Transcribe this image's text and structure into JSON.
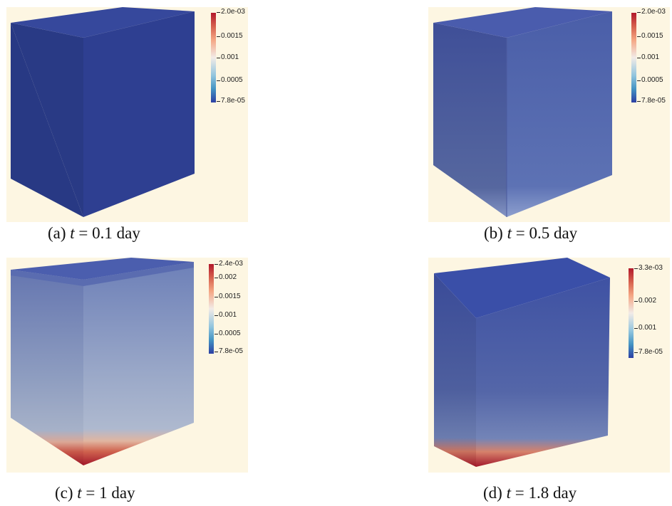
{
  "panels": [
    {
      "caption_label": "(a)",
      "caption_var": "t",
      "caption_eq": "= 0.1 day",
      "colorbar_ticks": [
        "2.0e-03",
        "0.0015",
        "0.001",
        "0.0005",
        "7.8e-05"
      ]
    },
    {
      "caption_label": "(b)",
      "caption_var": "t",
      "caption_eq": "= 0.5 day",
      "colorbar_ticks": [
        "2.0e-03",
        "0.0015",
        "0.001",
        "0.0005",
        "7.8e-05"
      ]
    },
    {
      "caption_label": "(c)",
      "caption_var": "t",
      "caption_eq": "= 1 day",
      "colorbar_ticks": [
        "2.4e-03",
        "0.002",
        "0.0015",
        "0.001",
        "0.0005",
        "7.8e-05"
      ]
    },
    {
      "caption_label": "(d)",
      "caption_var": "t",
      "caption_eq": "= 1.8 day",
      "colorbar_ticks": [
        "3.3e-03",
        "0.002",
        "0.001",
        "7.8e-05"
      ]
    }
  ],
  "colors": {
    "background": "#fdf6e2",
    "colormap_high": "#b2182b",
    "colormap_mid": "#f2ebe7",
    "colormap_low": "#2c3fa3"
  }
}
